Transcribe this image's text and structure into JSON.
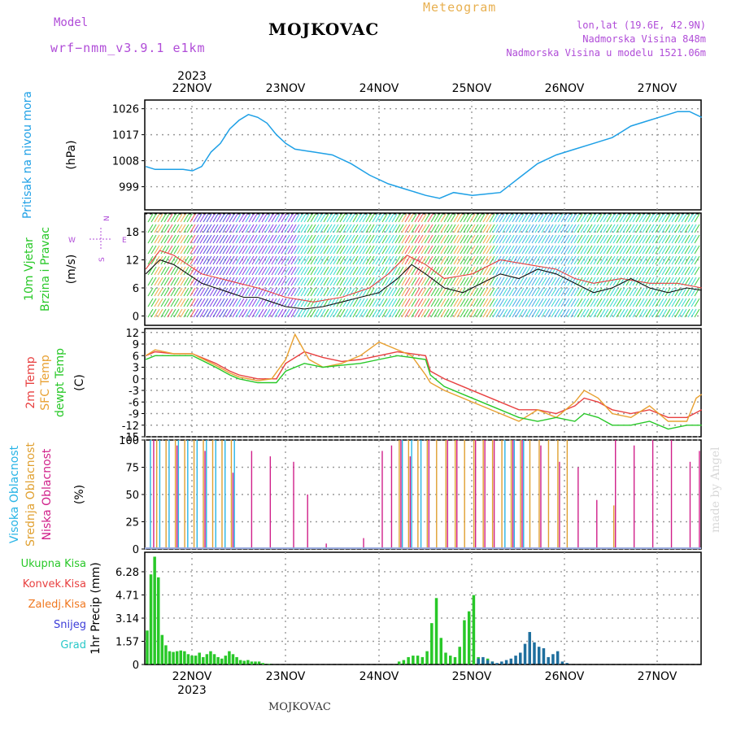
{
  "header": {
    "model_label": "Model",
    "model_name": "wrf−nmm_v3.9.1  e1km",
    "title": "MOJKOVAC",
    "subtitle": "Meteogram",
    "coords": "lon,lat (19.6E, 42.9N)",
    "elevation": "Nadmorska Visina 848m",
    "model_elevation": "Nadmorska Visina u modelu 1521.06m"
  },
  "footer": {
    "station": "MOJKOVAC"
  },
  "watermark": "made by Angel",
  "colors": {
    "pressure": "#1ea0e6",
    "temp2m": "#e84040",
    "sfc": "#e8a030",
    "dewpt": "#28c828",
    "high_cloud": "#28b4e6",
    "mid_cloud": "#e0a030",
    "low_cloud": "#d0208a",
    "rain": "#28c828",
    "convective": "#e84040",
    "freezing": "#f07820",
    "snow": "#3c3cd8",
    "hail": "#28c8c8"
  },
  "chart_data": [
    {
      "type": "line",
      "panel": "pressure",
      "ylabel": "Pritisak na nivou mora",
      "unit": "(hPa)",
      "ylim": [
        991,
        1029
      ],
      "yticks": [
        999,
        1008,
        1017,
        1026
      ],
      "x_top_labels": [
        "22NOV",
        "23NOV",
        "24NOV",
        "25NOV",
        "26NOV",
        "27NOV"
      ],
      "x_top_year": "2023",
      "series": [
        {
          "x": [
            0,
            0.1,
            0.2,
            0.3,
            0.4,
            0.5,
            0.6,
            0.7,
            0.8,
            0.9,
            1.0,
            1.1,
            1.2,
            1.3,
            1.4,
            1.5,
            1.6,
            1.8,
            2.0,
            2.2,
            2.4,
            2.6,
            2.8,
            3.0,
            3.15,
            3.3,
            3.5,
            3.65,
            3.8,
            4.0,
            4.2,
            4.4,
            4.6,
            4.8,
            5.0,
            5.2,
            5.4,
            5.5,
            5.6,
            5.7,
            5.83,
            5.96
          ],
          "values": [
            1006,
            1005,
            1005,
            1005,
            1005,
            1004.5,
            1006,
            1011,
            1014,
            1019,
            1022,
            1024,
            1023,
            1021,
            1017,
            1014,
            1012,
            1011,
            1010,
            1007,
            1003,
            1000,
            998,
            996,
            995,
            997,
            996,
            996.5,
            997,
            1002,
            1007,
            1010,
            1012,
            1014,
            1016,
            1020,
            1022,
            1023,
            1024,
            1025,
            1025,
            1023
          ]
        }
      ]
    },
    {
      "type": "line",
      "panel": "wind",
      "ylabel": [
        "10m Vjetar",
        "Brzina i Pravac"
      ],
      "unit": "(m/s)",
      "ylim": [
        -2,
        22
      ],
      "yticks": [
        0,
        6,
        12,
        18
      ],
      "compass": [
        "N",
        "W",
        "E",
        "S"
      ],
      "series": [
        {
          "name": "speed",
          "x": [
            0,
            0.15,
            0.3,
            0.45,
            0.6,
            0.75,
            0.9,
            1.05,
            1.2,
            1.35,
            1.5,
            1.7,
            1.9,
            2.1,
            2.3,
            2.5,
            2.7,
            2.85,
            3.0,
            3.2,
            3.4,
            3.6,
            3.8,
            4.0,
            4.2,
            4.4,
            4.6,
            4.8,
            5.0,
            5.2,
            5.4,
            5.6,
            5.8,
            5.96
          ],
          "values": [
            9,
            12,
            11,
            9,
            7,
            6,
            5,
            4,
            4,
            3,
            2,
            1.5,
            2,
            3,
            4,
            5,
            8,
            11,
            9,
            6,
            5,
            7,
            9,
            8,
            10,
            9,
            7,
            5,
            6,
            8,
            6,
            5,
            6,
            5.5
          ]
        },
        {
          "name": "gust",
          "x": [
            0,
            0.15,
            0.3,
            0.45,
            0.6,
            0.8,
            1.0,
            1.2,
            1.5,
            1.8,
            2.1,
            2.4,
            2.6,
            2.8,
            3.0,
            3.2,
            3.5,
            3.8,
            4.1,
            4.4,
            4.6,
            4.8,
            5.1,
            5.4,
            5.7,
            5.96
          ],
          "values": [
            10,
            14,
            13,
            11,
            9,
            8,
            7,
            6,
            4,
            3,
            4,
            6,
            9,
            13,
            11,
            8,
            9,
            12,
            11,
            10,
            8,
            7,
            8,
            7,
            7,
            6
          ]
        }
      ]
    },
    {
      "type": "line",
      "panel": "temperature",
      "ylabel": [
        "2m Temp",
        "SFC Temp",
        "dewpt Temp"
      ],
      "unit": "(C)",
      "ylim": [
        -15,
        13
      ],
      "yticks": [
        -15,
        -12,
        -9,
        -6,
        -3,
        0,
        3,
        6,
        9,
        12
      ],
      "series": [
        {
          "name": "2m Temp",
          "x": [
            0,
            0.1,
            0.3,
            0.5,
            0.75,
            0.9,
            1.0,
            1.2,
            1.4,
            1.5,
            1.7,
            1.9,
            2.1,
            2.3,
            2.5,
            2.7,
            2.85,
            3.0,
            3.05,
            3.2,
            3.4,
            3.6,
            3.8,
            4.0,
            4.2,
            4.4,
            4.6,
            4.7,
            4.85,
            5.0,
            5.2,
            5.4,
            5.6,
            5.8,
            5.96
          ],
          "values": [
            6,
            7,
            6.5,
            6.5,
            4,
            2,
            1,
            0,
            0,
            4,
            7,
            5.5,
            4.5,
            5,
            6,
            7,
            6.5,
            6,
            2,
            0,
            -2,
            -4,
            -6,
            -8,
            -8,
            -9,
            -7,
            -5,
            -6,
            -8,
            -9,
            -8,
            -10,
            -10,
            -8
          ]
        },
        {
          "name": "SFC Temp",
          "x": [
            0,
            0.1,
            0.3,
            0.5,
            0.75,
            0.9,
            1.0,
            1.2,
            1.35,
            1.5,
            1.6,
            1.75,
            1.9,
            2.1,
            2.3,
            2.5,
            2.7,
            2.85,
            3.0,
            3.05,
            3.2,
            3.4,
            3.6,
            3.8,
            4.0,
            4.2,
            4.4,
            4.6,
            4.7,
            4.85,
            5.0,
            5.2,
            5.4,
            5.6,
            5.8,
            5.9,
            5.96
          ],
          "values": [
            6,
            7.5,
            6.5,
            6.5,
            3.5,
            1.5,
            0.5,
            -0.5,
            0,
            5,
            11.5,
            5,
            3,
            4,
            6,
            9.5,
            7.5,
            6,
            1,
            -1,
            -3,
            -5,
            -7,
            -9,
            -11,
            -8,
            -10,
            -6,
            -3,
            -5,
            -9,
            -10,
            -7,
            -11,
            -11,
            -5,
            -4
          ]
        },
        {
          "name": "dewpt Temp",
          "x": [
            0,
            0.1,
            0.3,
            0.5,
            0.75,
            0.9,
            1.0,
            1.2,
            1.4,
            1.5,
            1.7,
            1.9,
            2.1,
            2.3,
            2.5,
            2.7,
            2.85,
            3.0,
            3.05,
            3.2,
            3.4,
            3.6,
            3.8,
            4.0,
            4.2,
            4.4,
            4.6,
            4.7,
            4.85,
            5.0,
            5.2,
            5.4,
            5.6,
            5.8,
            5.96
          ],
          "values": [
            5,
            6,
            6,
            6,
            3,
            1,
            0,
            -1,
            -1,
            2,
            4,
            3,
            3.5,
            4,
            5,
            6,
            5.5,
            5,
            1,
            -2,
            -4,
            -6,
            -8,
            -10,
            -11,
            -10,
            -11,
            -9,
            -10,
            -12,
            -12,
            -11,
            -13,
            -12,
            -12
          ]
        }
      ]
    },
    {
      "type": "bar",
      "panel": "clouds",
      "ylabel": [
        "Visoka Oblacnost",
        "Srednja Oblacnost",
        "Niska Oblacnost"
      ],
      "unit": "(%)",
      "ylim": [
        0,
        100
      ],
      "yticks": [
        0,
        25,
        50,
        75,
        100
      ],
      "series": [
        {
          "name": "Visoka Oblacnost",
          "x": [
            0.05,
            0.15,
            0.25,
            0.35,
            0.45,
            0.55,
            0.65,
            0.75,
            0.85,
            0.95,
            2.75,
            2.85,
            2.95,
            3.85,
            3.95,
            4.05
          ],
          "values": [
            100,
            100,
            100,
            100,
            100,
            100,
            100,
            100,
            100,
            100,
            100,
            100,
            100,
            100,
            100,
            100
          ]
        },
        {
          "name": "Srednja Oblacnost",
          "x": [
            0.1,
            0.2,
            0.3,
            0.4,
            0.5,
            0.6,
            0.7,
            0.8,
            0.9,
            2.7,
            2.8,
            2.9,
            3.0,
            3.1,
            3.2,
            3.3,
            3.4,
            3.5,
            3.6,
            3.7,
            3.8,
            3.9,
            4.0,
            4.1,
            4.2,
            4.3,
            4.4,
            4.5,
            5.0
          ],
          "values": [
            100,
            100,
            100,
            100,
            100,
            100,
            100,
            100,
            100,
            100,
            100,
            100,
            100,
            100,
            100,
            100,
            100,
            100,
            100,
            100,
            100,
            100,
            100,
            100,
            100,
            100,
            100,
            100,
            40
          ]
        },
        {
          "name": "Niska Oblacnost",
          "x": [
            0.05,
            0.3,
            0.6,
            0.9,
            1.1,
            1.3,
            1.55,
            1.7,
            1.9,
            2.3,
            2.5,
            2.6,
            2.7,
            2.8,
            3.0,
            3.2,
            3.3,
            3.5,
            3.6,
            3.7,
            3.9,
            4.0,
            4.2,
            4.4,
            4.6,
            4.8,
            5.0,
            5.2,
            5.4,
            5.6,
            5.8,
            5.9
          ],
          "values": [
            100,
            95,
            90,
            70,
            90,
            85,
            80,
            50,
            5,
            10,
            90,
            95,
            100,
            85,
            100,
            100,
            100,
            100,
            100,
            100,
            100,
            100,
            95,
            80,
            75,
            45,
            100,
            95,
            100,
            100,
            80,
            90
          ]
        }
      ]
    },
    {
      "type": "bar",
      "panel": "precipitation",
      "ylabel": "1hr Precip",
      "unit": "(mm)",
      "ylim": [
        0,
        7.6
      ],
      "yticks": [
        0,
        1.57,
        3.14,
        4.71,
        6.28
      ],
      "ytick_labels": [
        "0",
        "1.57",
        "3.14",
        "4.71",
        "6.28"
      ],
      "legend": [
        "Ukupna Kisa",
        "Konvek.Kisa",
        "Zaledj.Kisa",
        "Snijeg",
        "Grad"
      ],
      "x_bottom_labels": [
        "22NOV",
        "23NOV",
        "24NOV",
        "25NOV",
        "26NOV",
        "27NOV"
      ],
      "x_bottom_year": "2023",
      "series": [
        {
          "name": "Ukupna Kisa",
          "x": [
            0.0,
            0.04,
            0.08,
            0.12,
            0.16,
            0.2,
            0.24,
            0.28,
            0.32,
            0.36,
            0.4,
            0.44,
            0.48,
            0.52,
            0.56,
            0.6,
            0.64,
            0.68,
            0.72,
            0.76,
            0.8,
            0.84,
            0.88,
            0.92,
            0.96,
            1.0,
            1.04,
            1.08,
            1.12,
            1.16,
            1.2,
            1.24,
            1.28,
            1.32,
            2.7,
            2.75,
            2.8,
            2.85,
            2.9,
            2.95,
            3.0,
            3.05,
            3.1,
            3.15,
            3.2,
            3.25,
            3.3,
            3.35,
            3.4,
            3.45,
            3.5,
            3.55,
            3.6,
            3.65,
            3.7
          ],
          "values": [
            2.3,
            6.1,
            7.3,
            5.9,
            2.0,
            1.3,
            0.9,
            0.85,
            0.9,
            0.95,
            0.9,
            0.7,
            0.6,
            0.6,
            0.8,
            0.5,
            0.7,
            0.9,
            0.7,
            0.5,
            0.4,
            0.6,
            0.9,
            0.7,
            0.5,
            0.3,
            0.25,
            0.3,
            0.2,
            0.2,
            0.2,
            0.1,
            0.05,
            0.05,
            0.2,
            0.3,
            0.5,
            0.6,
            0.6,
            0.5,
            0.9,
            2.8,
            4.5,
            1.8,
            0.8,
            0.6,
            0.5,
            1.2,
            3.0,
            3.6,
            4.7,
            0.5,
            0.3,
            0.4,
            0.2
          ]
        },
        {
          "name": "Snijeg",
          "x": [
            3.55,
            3.6,
            3.65,
            3.7,
            3.75,
            3.8,
            3.85,
            3.9,
            3.95,
            4.0,
            4.05,
            4.1,
            4.15,
            4.2,
            4.25,
            4.3,
            4.35,
            4.4,
            4.45,
            4.5
          ],
          "values": [
            0.4,
            0.5,
            0.3,
            0.2,
            0.1,
            0.2,
            0.3,
            0.4,
            0.6,
            0.8,
            1.4,
            2.2,
            1.5,
            1.2,
            1.1,
            0.5,
            0.7,
            0.9,
            0.2,
            0.1
          ]
        }
      ]
    }
  ]
}
